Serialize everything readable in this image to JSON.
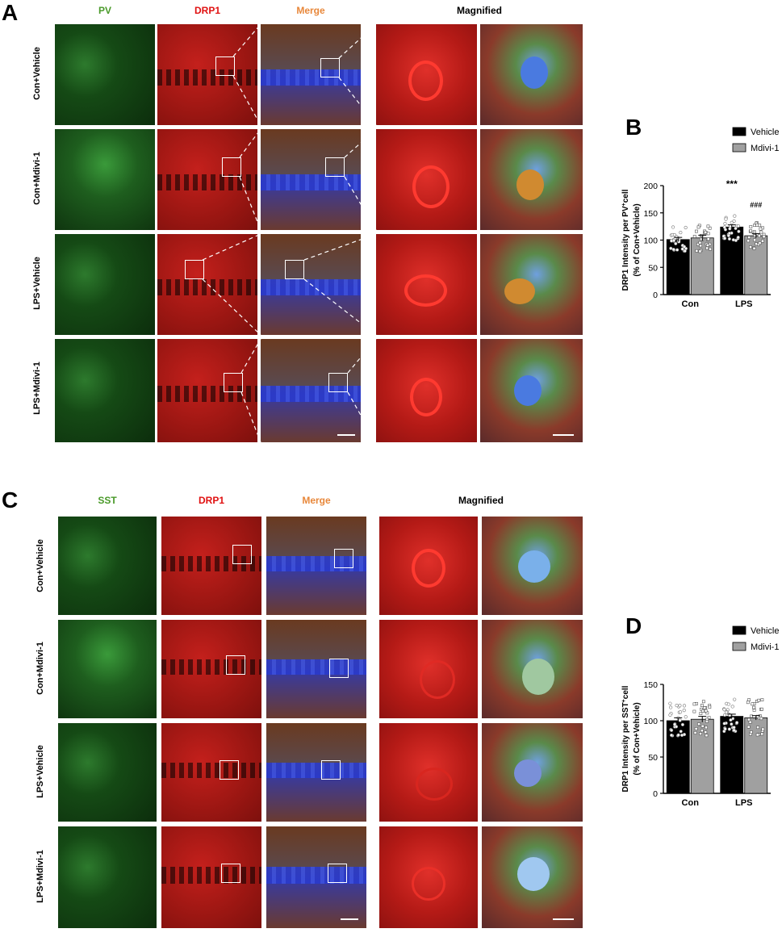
{
  "panels": {
    "A": {
      "letter": "A",
      "headers": {
        "pv": "PV",
        "drp1": "DRP1",
        "merge": "Merge",
        "magnified": "Magnified"
      },
      "rows": [
        "Con+Vehicle",
        "Con+Mdivi-1",
        "LPS+Vehicle",
        "LPS+Mdivi-1"
      ]
    },
    "C": {
      "letter": "C",
      "headers": {
        "sst": "SST",
        "drp1": "DRP1",
        "merge": "Merge",
        "magnified": "Magnified"
      },
      "rows": [
        "Con+Vehicle",
        "Con+Mdivi-1",
        "LPS+Vehicle",
        "LPS+Mdivi-1"
      ]
    }
  },
  "colors": {
    "green_label": "#4a9a2a",
    "red_label": "#e01010",
    "merge_label": "#e8873a",
    "vehicle_bar": "#000000",
    "mdivi_bar": "#a0a0a0"
  },
  "chart_data": [
    {
      "panel": "B",
      "type": "bar",
      "categories": [
        "Con",
        "LPS"
      ],
      "series": [
        {
          "name": "Vehicle",
          "values": [
            101,
            124
          ]
        },
        {
          "name": "Mdivi-1",
          "values": [
            104,
            108
          ]
        }
      ],
      "error": [
        [
          4,
          5
        ],
        [
          4,
          4
        ]
      ],
      "ylabel_line1": "DRP1 Intensity per PV",
      "ylabel_sup": "+",
      "ylabel_line1_end": "cell",
      "ylabel_line2": "(% of Con+Vehicle)",
      "ylim": [
        0,
        200
      ],
      "yticks": [
        "0",
        "50",
        "100",
        "150",
        "200"
      ],
      "annotations": [
        "***",
        "###"
      ],
      "legend": "top-right"
    },
    {
      "panel": "D",
      "type": "bar",
      "categories": [
        "Con",
        "LPS"
      ],
      "series": [
        {
          "name": "Vehicle",
          "values": [
            100,
            106
          ]
        },
        {
          "name": "Mdivi-1",
          "values": [
            102,
            104
          ]
        }
      ],
      "error": [
        [
          4,
          4
        ],
        [
          3,
          3
        ]
      ],
      "ylabel_line1": "DRP1 Intensity per SST",
      "ylabel_sup": "+",
      "ylabel_line1_end": "cell",
      "ylabel_line2": "(% of Con+Vehicle)",
      "ylim": [
        0,
        150
      ],
      "yticks": [
        "0",
        "50",
        "100",
        "150"
      ],
      "annotations": [],
      "legend": "top-right"
    }
  ]
}
